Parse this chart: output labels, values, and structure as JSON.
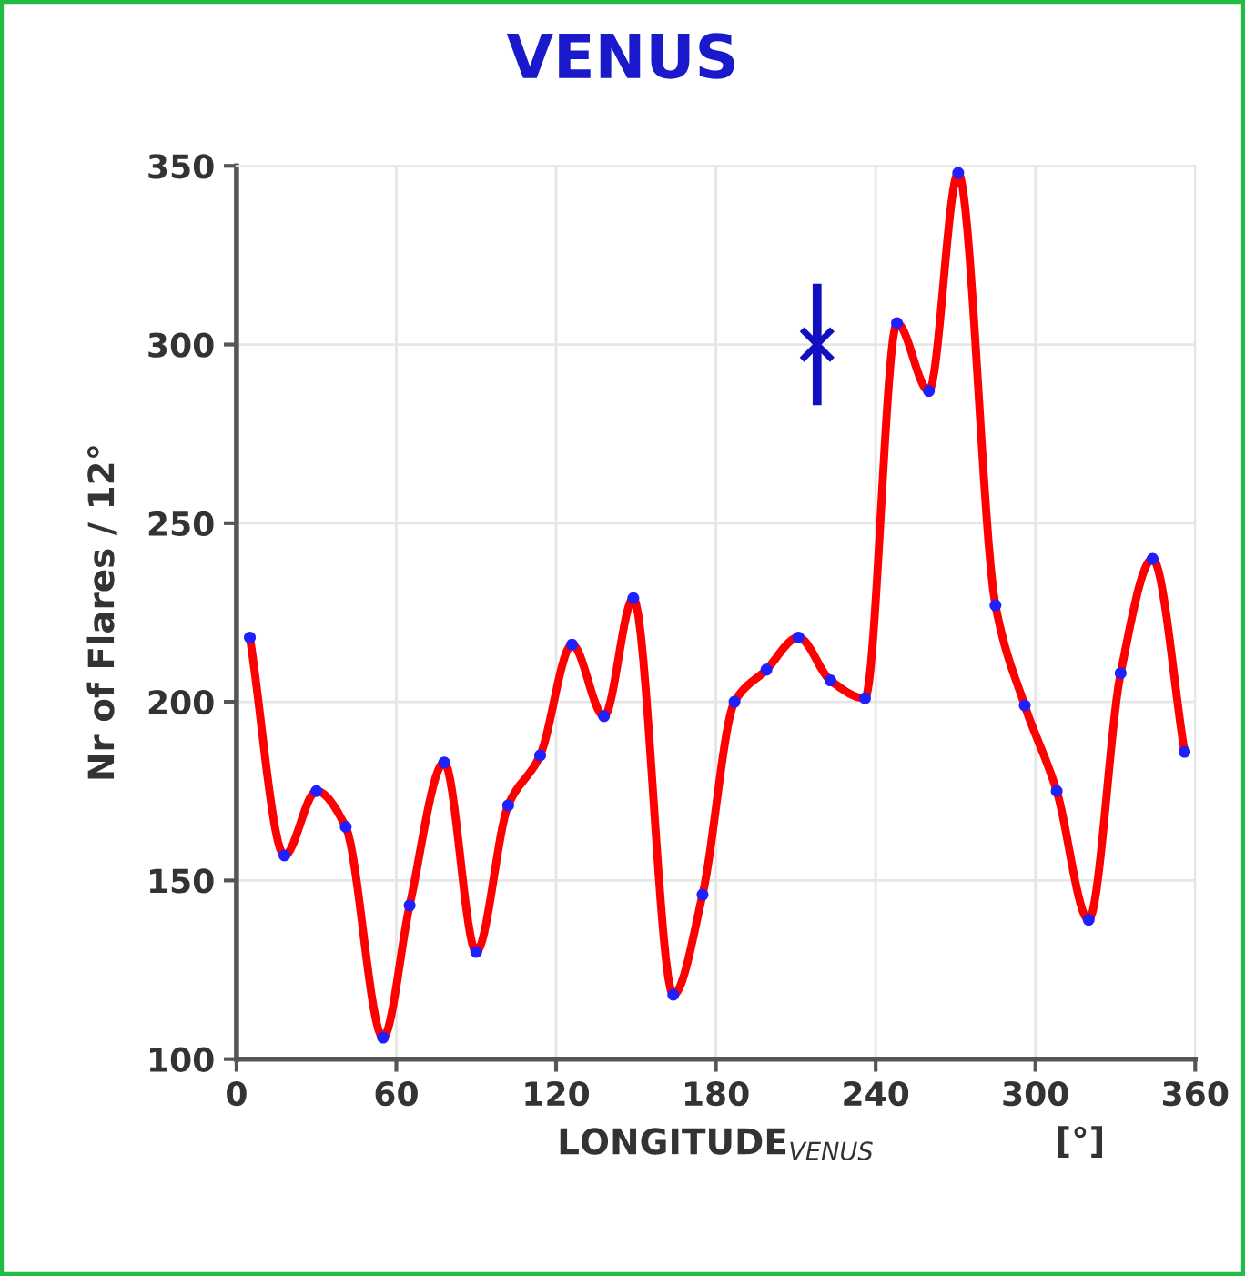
{
  "chart_data": {
    "type": "line",
    "title": "VENUS",
    "xlabel": "LONGITUDE$_{VENUS}$",
    "ylabel": "Nr of Flares / 12°",
    "annotations": [
      "[°]"
    ],
    "xlim": [
      0,
      360
    ],
    "xticks": [
      0,
      60,
      120,
      180,
      240,
      300,
      360
    ],
    "ylim": [
      100,
      350
    ],
    "yticks": [
      100,
      150,
      200,
      250,
      300,
      350
    ],
    "grid": true,
    "series": [
      {
        "color": "#ff0000",
        "marker": "circle",
        "colors": [
          "#2020ff",
          "#2020ff",
          "#2020ff",
          "#2020ff",
          "#2020ff",
          "#2020ff",
          "#2020ff",
          "#2020ff",
          "#2020ff",
          "#2020ff",
          "#2020ff",
          "#2020ff",
          "#2020ff",
          "#2020ff",
          "#2020ff",
          "#2020ff",
          "#2020ff",
          "#2020ff",
          "#2020ff",
          "#2020ff",
          "#2020ff",
          "#2020ff",
          "#2020ff",
          "#2020ff",
          "#2020ff",
          "#2020ff",
          "#2020ff",
          "#2020ff",
          "#2020ff",
          "#2020ff"
        ],
        "x": [
          5,
          18,
          30,
          41,
          55,
          65,
          78,
          90,
          102,
          114,
          126,
          138,
          149,
          164,
          175,
          187,
          199,
          211,
          223,
          236,
          248,
          260,
          271,
          285,
          296,
          308,
          320,
          332,
          344,
          356
        ],
        "values": [
          218,
          157,
          175,
          165,
          106,
          143,
          183,
          130,
          171,
          185,
          216,
          196,
          229,
          118,
          146,
          200,
          209,
          218,
          206,
          201,
          306,
          287,
          348,
          227,
          199,
          175,
          139,
          208,
          240,
          186
        ]
      },
      {
        "type": "scatter",
        "color": "#1010c0",
        "marker": "cross",
        "x": [
          218
        ],
        "values": [
          300
        ],
        "errors": [
          17
        ]
      }
    ]
  }
}
